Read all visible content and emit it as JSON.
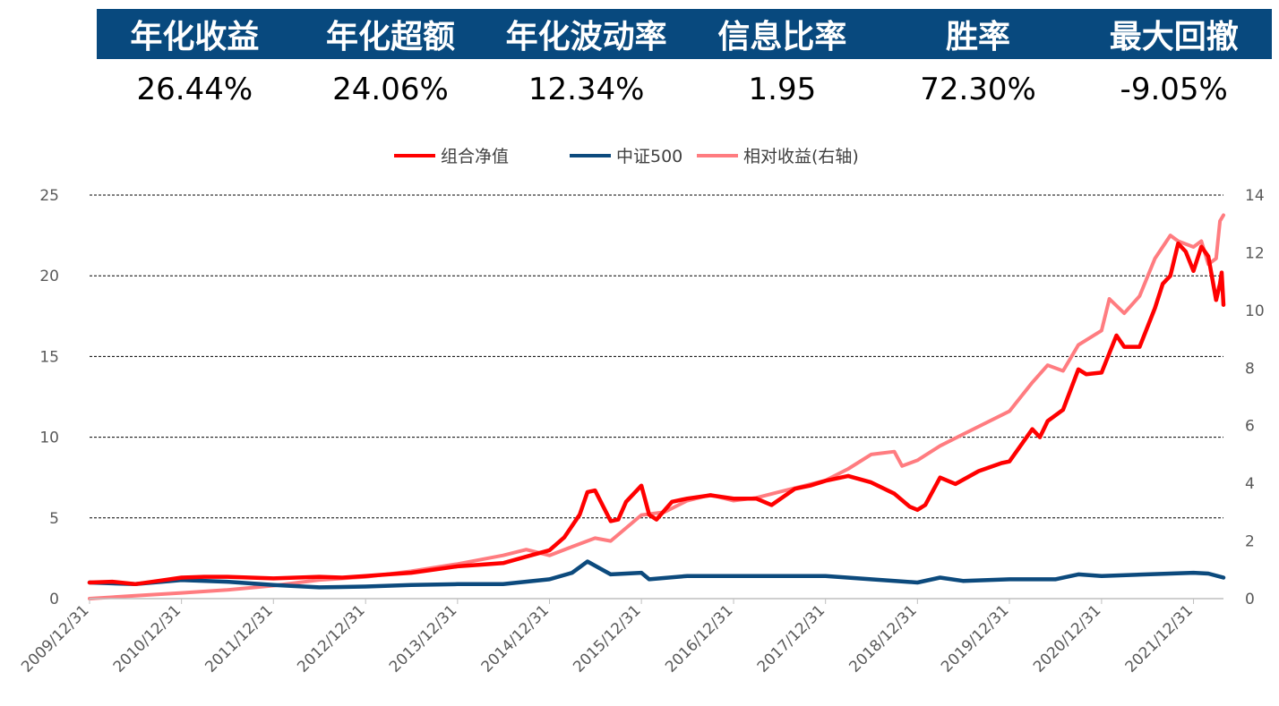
{
  "stats": {
    "headers": [
      "年化收益",
      "年化超额",
      "年化波动率",
      "信息比率",
      "胜率",
      "最大回撤"
    ],
    "values": [
      "26.44%",
      "24.06%",
      "12.34%",
      "1.95",
      "72.30%",
      "-9.05%"
    ],
    "header_color": "#08497e"
  },
  "chart_data": {
    "type": "line",
    "x_start": "2009/12/31",
    "x_end": "2022/04/29",
    "x_tick_labels": [
      "2009/12/31",
      "2010/12/31",
      "2011/12/31",
      "2012/12/31",
      "2013/12/31",
      "2014/12/31",
      "2015/12/31",
      "2016/12/31",
      "2017/12/31",
      "2018/12/31",
      "2019/12/31",
      "2020/12/31",
      "2021/12/31"
    ],
    "y_left": {
      "range": [
        0,
        25
      ],
      "ticks": [
        "0",
        "5",
        "10",
        "15",
        "20",
        "25"
      ]
    },
    "y_right": {
      "range": [
        0,
        14
      ],
      "ticks": [
        "0",
        "2",
        "4",
        "6",
        "8",
        "10",
        "12",
        "14"
      ]
    },
    "grid": "horizontal dashed",
    "legend": "top-center",
    "series": [
      {
        "name": "组合净值",
        "axis": "left",
        "color": "#ff0000",
        "points": [
          [
            "2009/12/31",
            1.0
          ],
          [
            "2010/03/31",
            1.05
          ],
          [
            "2010/06/30",
            0.9
          ],
          [
            "2010/09/30",
            1.1
          ],
          [
            "2010/12/31",
            1.3
          ],
          [
            "2011/03/31",
            1.35
          ],
          [
            "2011/06/30",
            1.35
          ],
          [
            "2011/09/30",
            1.3
          ],
          [
            "2011/12/31",
            1.25
          ],
          [
            "2012/03/31",
            1.3
          ],
          [
            "2012/06/30",
            1.35
          ],
          [
            "2012/09/30",
            1.3
          ],
          [
            "2012/12/31",
            1.4
          ],
          [
            "2013/03/31",
            1.5
          ],
          [
            "2013/06/30",
            1.6
          ],
          [
            "2013/09/30",
            1.8
          ],
          [
            "2013/12/31",
            2.0
          ],
          [
            "2014/03/31",
            2.1
          ],
          [
            "2014/06/30",
            2.2
          ],
          [
            "2014/09/30",
            2.6
          ],
          [
            "2014/12/31",
            3.0
          ],
          [
            "2015/02/28",
            3.8
          ],
          [
            "2015/04/30",
            5.2
          ],
          [
            "2015/05/31",
            6.6
          ],
          [
            "2015/06/30",
            6.7
          ],
          [
            "2015/08/31",
            4.8
          ],
          [
            "2015/09/30",
            4.9
          ],
          [
            "2015/10/31",
            6.0
          ],
          [
            "2015/12/31",
            7.0
          ],
          [
            "2016/01/31",
            5.2
          ],
          [
            "2016/02/29",
            4.9
          ],
          [
            "2016/04/30",
            6.0
          ],
          [
            "2016/06/30",
            6.2
          ],
          [
            "2016/09/30",
            6.4
          ],
          [
            "2016/12/31",
            6.2
          ],
          [
            "2017/03/31",
            6.2
          ],
          [
            "2017/05/31",
            5.8
          ],
          [
            "2017/08/31",
            6.8
          ],
          [
            "2017/10/31",
            7.0
          ],
          [
            "2017/12/31",
            7.3
          ],
          [
            "2018/03/31",
            7.6
          ],
          [
            "2018/06/30",
            7.2
          ],
          [
            "2018/09/30",
            6.5
          ],
          [
            "2018/11/30",
            5.7
          ],
          [
            "2018/12/31",
            5.5
          ],
          [
            "2019/01/31",
            5.8
          ],
          [
            "2019/03/31",
            7.5
          ],
          [
            "2019/05/31",
            7.1
          ],
          [
            "2019/08/31",
            7.9
          ],
          [
            "2019/11/30",
            8.4
          ],
          [
            "2019/12/31",
            8.5
          ],
          [
            "2020/03/31",
            10.5
          ],
          [
            "2020/04/30",
            10.0
          ],
          [
            "2020/05/31",
            11.0
          ],
          [
            "2020/07/31",
            11.7
          ],
          [
            "2020/09/30",
            14.2
          ],
          [
            "2020/10/31",
            13.9
          ],
          [
            "2020/12/31",
            14.0
          ],
          [
            "2021/02/28",
            16.3
          ],
          [
            "2021/03/31",
            15.6
          ],
          [
            "2021/05/31",
            15.6
          ],
          [
            "2021/07/31",
            18.0
          ],
          [
            "2021/08/31",
            19.5
          ],
          [
            "2021/09/30",
            20.0
          ],
          [
            "2021/10/31",
            22.0
          ],
          [
            "2021/11/30",
            21.5
          ],
          [
            "2021/12/31",
            20.3
          ],
          [
            "2022/01/31",
            21.8
          ],
          [
            "2022/02/28",
            21.2
          ],
          [
            "2022/03/31",
            18.5
          ],
          [
            "2022/04/15",
            19.5
          ],
          [
            "2022/04/22",
            20.2
          ],
          [
            "2022/04/29",
            18.2
          ]
        ]
      },
      {
        "name": "中证500",
        "axis": "left",
        "color": "#0c4a7d",
        "points": [
          [
            "2009/12/31",
            1.0
          ],
          [
            "2010/06/30",
            0.9
          ],
          [
            "2010/12/31",
            1.15
          ],
          [
            "2011/06/30",
            1.05
          ],
          [
            "2011/12/31",
            0.85
          ],
          [
            "2012/06/30",
            0.7
          ],
          [
            "2012/12/31",
            0.75
          ],
          [
            "2013/06/30",
            0.85
          ],
          [
            "2013/12/31",
            0.9
          ],
          [
            "2014/06/30",
            0.9
          ],
          [
            "2014/12/31",
            1.2
          ],
          [
            "2015/03/31",
            1.6
          ],
          [
            "2015/05/31",
            2.3
          ],
          [
            "2015/08/31",
            1.5
          ],
          [
            "2015/12/31",
            1.6
          ],
          [
            "2016/01/31",
            1.2
          ],
          [
            "2016/06/30",
            1.4
          ],
          [
            "2016/12/31",
            1.4
          ],
          [
            "2017/06/30",
            1.4
          ],
          [
            "2017/12/31",
            1.4
          ],
          [
            "2018/06/30",
            1.2
          ],
          [
            "2018/12/31",
            1.0
          ],
          [
            "2019/03/31",
            1.3
          ],
          [
            "2019/06/30",
            1.1
          ],
          [
            "2019/12/31",
            1.2
          ],
          [
            "2020/06/30",
            1.2
          ],
          [
            "2020/09/30",
            1.5
          ],
          [
            "2020/12/31",
            1.4
          ],
          [
            "2021/06/30",
            1.5
          ],
          [
            "2021/12/31",
            1.6
          ],
          [
            "2022/02/28",
            1.55
          ],
          [
            "2022/04/29",
            1.3
          ]
        ]
      },
      {
        "name": "相对收益(右轴)",
        "axis": "right",
        "color": "#ff7c80",
        "points": [
          [
            "2009/12/31",
            0.0
          ],
          [
            "2010/06/30",
            0.1
          ],
          [
            "2010/12/31",
            0.2
          ],
          [
            "2011/06/30",
            0.3
          ],
          [
            "2011/12/31",
            0.45
          ],
          [
            "2012/06/30",
            0.65
          ],
          [
            "2012/12/31",
            0.75
          ],
          [
            "2013/06/30",
            0.95
          ],
          [
            "2013/12/31",
            1.2
          ],
          [
            "2014/06/30",
            1.5
          ],
          [
            "2014/09/30",
            1.7
          ],
          [
            "2014/12/31",
            1.5
          ],
          [
            "2015/03/31",
            1.8
          ],
          [
            "2015/06/30",
            2.1
          ],
          [
            "2015/08/31",
            2.0
          ],
          [
            "2015/12/31",
            2.9
          ],
          [
            "2016/03/31",
            3.0
          ],
          [
            "2016/06/30",
            3.4
          ],
          [
            "2016/09/30",
            3.6
          ],
          [
            "2016/12/31",
            3.4
          ],
          [
            "2017/03/31",
            3.5
          ],
          [
            "2017/06/30",
            3.7
          ],
          [
            "2017/12/31",
            4.1
          ],
          [
            "2018/03/31",
            4.5
          ],
          [
            "2018/06/30",
            5.0
          ],
          [
            "2018/09/30",
            5.1
          ],
          [
            "2018/10/31",
            4.6
          ],
          [
            "2018/12/31",
            4.8
          ],
          [
            "2019/03/31",
            5.3
          ],
          [
            "2019/06/30",
            5.7
          ],
          [
            "2019/12/31",
            6.5
          ],
          [
            "2020/03/31",
            7.5
          ],
          [
            "2020/05/31",
            8.1
          ],
          [
            "2020/07/31",
            7.9
          ],
          [
            "2020/09/30",
            8.8
          ],
          [
            "2020/12/31",
            9.3
          ],
          [
            "2021/01/31",
            10.4
          ],
          [
            "2021/03/31",
            9.9
          ],
          [
            "2021/05/31",
            10.5
          ],
          [
            "2021/07/31",
            11.8
          ],
          [
            "2021/09/30",
            12.6
          ],
          [
            "2021/10/31",
            12.4
          ],
          [
            "2021/12/31",
            12.2
          ],
          [
            "2022/01/31",
            12.4
          ],
          [
            "2022/02/28",
            11.6
          ],
          [
            "2022/03/31",
            11.8
          ],
          [
            "2022/04/15",
            13.1
          ],
          [
            "2022/04/29",
            13.3
          ]
        ]
      }
    ]
  }
}
